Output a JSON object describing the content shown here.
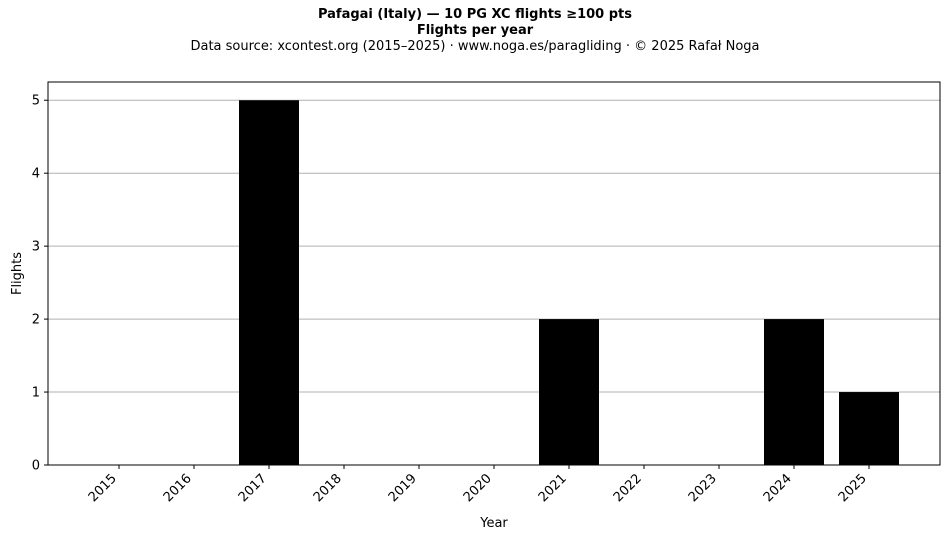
{
  "chart_data": {
    "type": "bar",
    "title": "Pafagai (Italy)  —  10 PG XC flights ≥100 pts",
    "subtitle": "Flights per year",
    "caption": "Data source: xcontest.org (2015–2025)  ·  www.noga.es/paragliding  ·  © 2025 Rafał Noga",
    "xlabel": "Year",
    "ylabel": "Flights",
    "categories": [
      "2015",
      "2016",
      "2017",
      "2018",
      "2019",
      "2020",
      "2021",
      "2022",
      "2023",
      "2024",
      "2025"
    ],
    "values": [
      0,
      0,
      5,
      0,
      0,
      0,
      2,
      0,
      0,
      2,
      1
    ],
    "ylim": [
      0,
      5.25
    ],
    "yticks": [
      0,
      1,
      2,
      3,
      4,
      5
    ],
    "grid": "y",
    "bar_color": "#000000",
    "grid_color": "#b0b0b0"
  }
}
